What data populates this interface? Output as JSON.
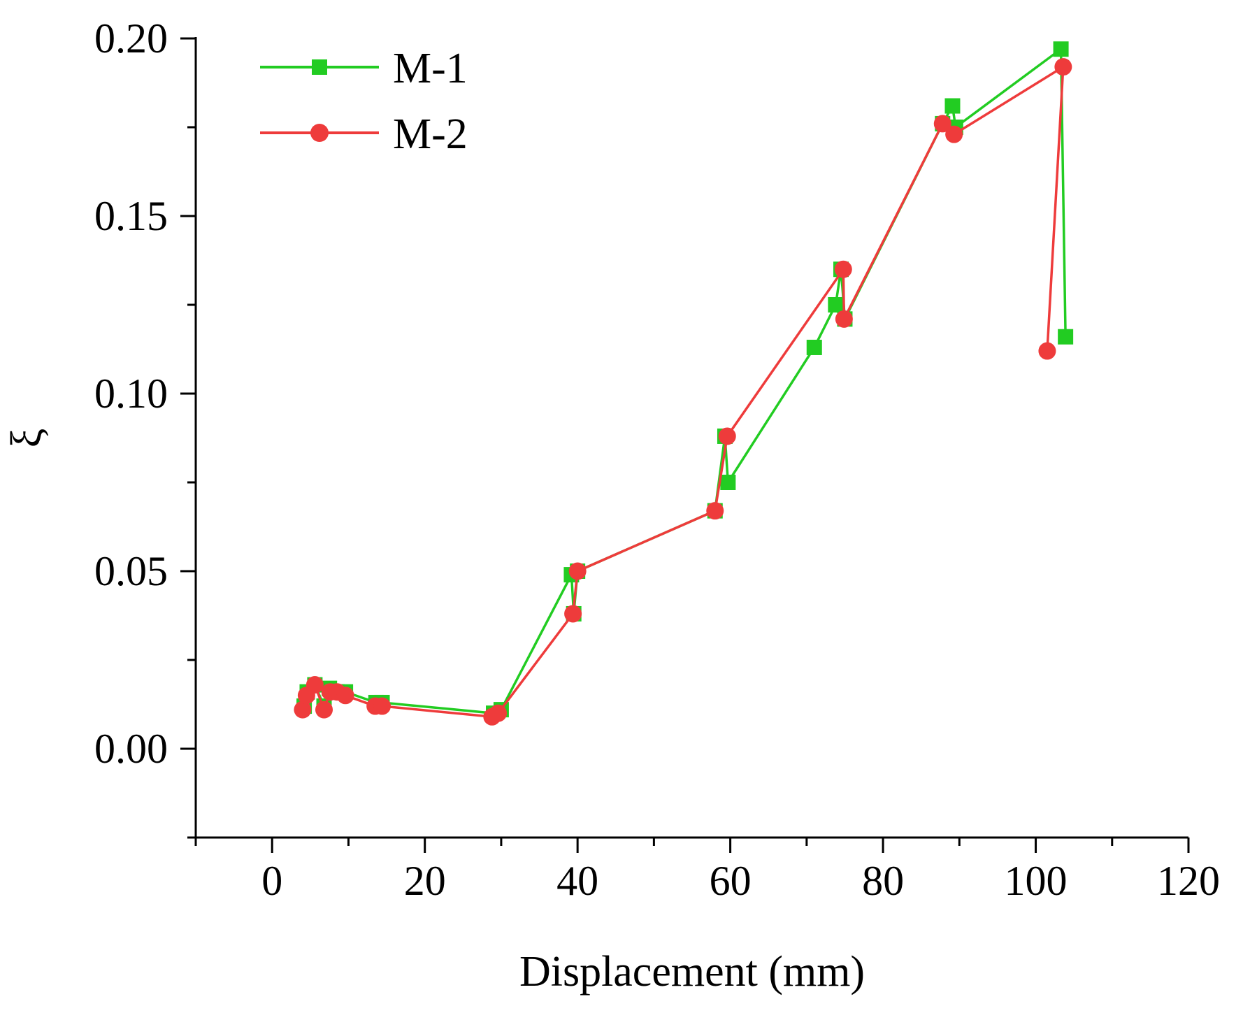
{
  "chart_data": {
    "type": "line",
    "title": "",
    "xlabel": "Displacement (mm)",
    "ylabel": "ξ",
    "xlim": [
      -10,
      120
    ],
    "ylim": [
      -0.025,
      0.2
    ],
    "xticks": [
      0,
      20,
      40,
      60,
      80,
      100,
      120
    ],
    "xtick_labels": [
      "0",
      "20",
      "40",
      "60",
      "80",
      "100",
      "120"
    ],
    "yticks": [
      0.0,
      0.05,
      0.1,
      0.15,
      0.2
    ],
    "ytick_labels": [
      "0.00",
      "0.05",
      "0.10",
      "0.15",
      "0.20"
    ],
    "legend_position": "top-left",
    "series": [
      {
        "name": "M-1",
        "color": "#22cc22",
        "marker": "square",
        "points": [
          [
            4.2,
            0.012
          ],
          [
            4.6,
            0.016
          ],
          [
            5.6,
            0.018
          ],
          [
            6.8,
            0.012
          ],
          [
            7.5,
            0.017
          ],
          [
            8.5,
            0.016
          ],
          [
            9.6,
            0.016
          ],
          [
            13.6,
            0.013
          ],
          [
            14.4,
            0.013
          ],
          [
            29.0,
            0.01
          ],
          [
            30.0,
            0.011
          ],
          [
            39.2,
            0.049
          ],
          [
            39.5,
            0.038
          ],
          [
            40.0,
            0.05
          ],
          [
            58.0,
            0.067
          ],
          [
            59.3,
            0.088
          ],
          [
            59.7,
            0.075
          ],
          [
            71.0,
            0.113
          ],
          [
            73.8,
            0.125
          ],
          [
            74.5,
            0.135
          ],
          [
            75.0,
            0.121
          ],
          [
            87.8,
            0.176
          ],
          [
            89.1,
            0.181
          ],
          [
            89.5,
            0.175
          ],
          [
            103.3,
            0.197
          ],
          [
            103.9,
            0.116
          ]
        ]
      },
      {
        "name": "M-2",
        "color": "#ee3b3b",
        "marker": "circle",
        "points": [
          [
            4.0,
            0.011
          ],
          [
            4.5,
            0.015
          ],
          [
            5.6,
            0.018
          ],
          [
            6.8,
            0.011
          ],
          [
            7.6,
            0.016
          ],
          [
            8.5,
            0.016
          ],
          [
            9.6,
            0.015
          ],
          [
            13.5,
            0.012
          ],
          [
            14.4,
            0.012
          ],
          [
            28.8,
            0.009
          ],
          [
            29.6,
            0.01
          ],
          [
            39.4,
            0.038
          ],
          [
            40.0,
            0.05
          ],
          [
            58.0,
            0.067
          ],
          [
            59.6,
            0.088
          ],
          [
            74.8,
            0.135
          ],
          [
            74.9,
            0.121
          ],
          [
            87.8,
            0.176
          ],
          [
            89.3,
            0.173
          ],
          [
            103.6,
            0.192
          ],
          [
            101.5,
            0.112
          ]
        ]
      }
    ]
  }
}
